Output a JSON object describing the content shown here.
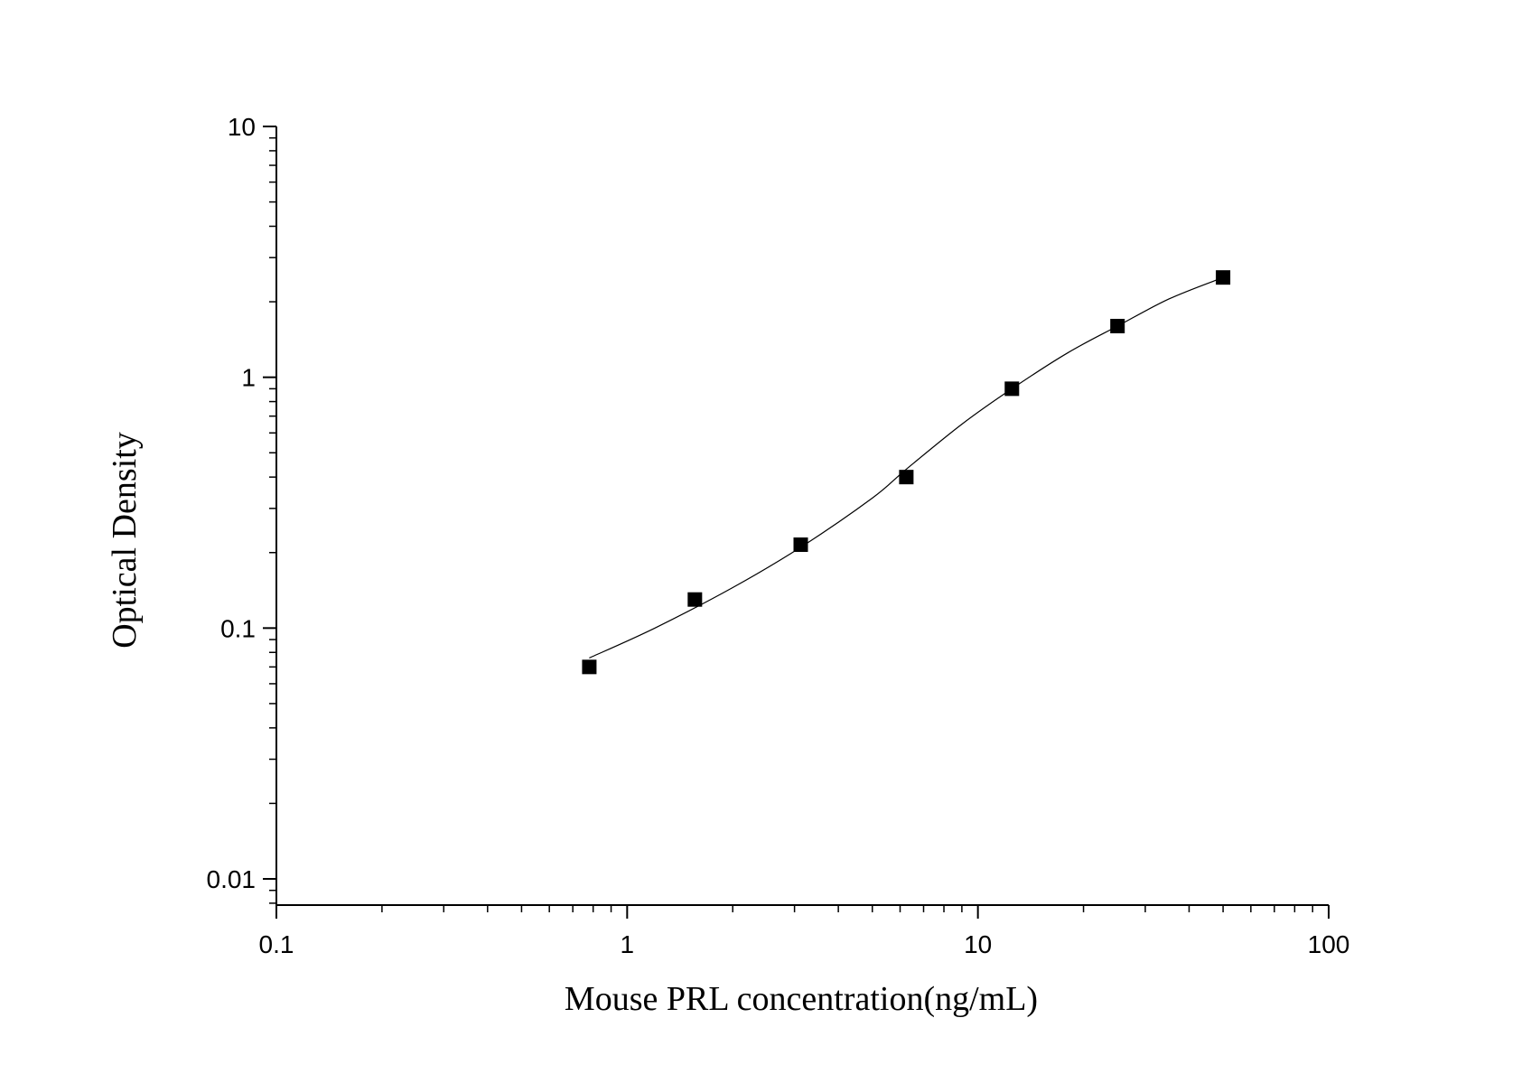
{
  "chart_data": {
    "type": "scatter",
    "xlabel": "Mouse PRL concentration(ng/mL)",
    "ylabel": "Optical Density",
    "x_scale": "log",
    "y_scale": "log",
    "xlim": [
      0.1,
      100
    ],
    "ylim": [
      0.01,
      10
    ],
    "x_ticks": [
      {
        "value": 0.1,
        "label": "0.1"
      },
      {
        "value": 1,
        "label": "1"
      },
      {
        "value": 10,
        "label": "10"
      },
      {
        "value": 100,
        "label": "100"
      }
    ],
    "y_ticks": [
      {
        "value": 0.01,
        "label": "0.01"
      },
      {
        "value": 0.1,
        "label": "0.1"
      },
      {
        "value": 1,
        "label": "1"
      },
      {
        "value": 10,
        "label": "10"
      }
    ],
    "grid": false,
    "legend": "none",
    "marker": "square",
    "marker_color": "#000000",
    "points": [
      {
        "x": 0.78,
        "y": 0.07
      },
      {
        "x": 1.56,
        "y": 0.13
      },
      {
        "x": 3.125,
        "y": 0.215
      },
      {
        "x": 6.25,
        "y": 0.4
      },
      {
        "x": 12.5,
        "y": 0.9
      },
      {
        "x": 25,
        "y": 1.6
      },
      {
        "x": 50,
        "y": 2.5
      }
    ],
    "fit_curve": {
      "color": "#000000",
      "points": [
        {
          "x": 0.78,
          "y": 0.076
        },
        {
          "x": 1.2,
          "y": 0.1
        },
        {
          "x": 2,
          "y": 0.145
        },
        {
          "x": 3.125,
          "y": 0.21
        },
        {
          "x": 5,
          "y": 0.33
        },
        {
          "x": 6.25,
          "y": 0.43
        },
        {
          "x": 9,
          "y": 0.65
        },
        {
          "x": 12.5,
          "y": 0.9
        },
        {
          "x": 18,
          "y": 1.25
        },
        {
          "x": 25,
          "y": 1.6
        },
        {
          "x": 35,
          "y": 2.05
        },
        {
          "x": 50,
          "y": 2.5
        }
      ]
    }
  }
}
